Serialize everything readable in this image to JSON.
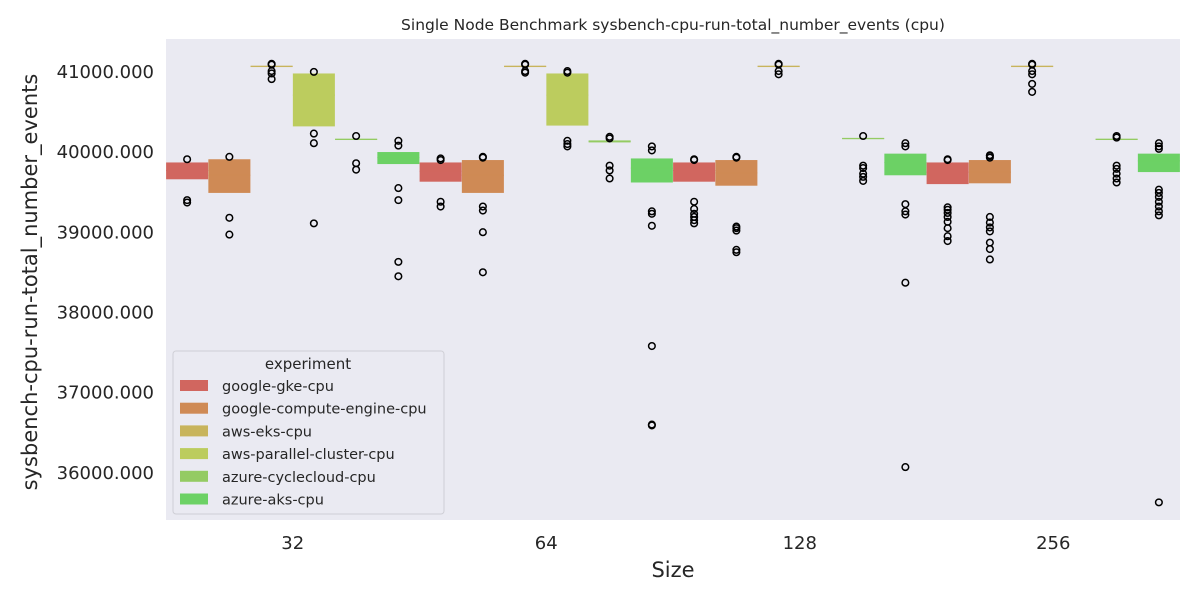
{
  "chart_data": {
    "type": "box",
    "title": "Single Node Benchmark sysbench-cpu-run-total_number_events (cpu)",
    "xlabel": "Size",
    "ylabel": "sysbench-cpu-run-total_number_events",
    "ylim": [
      35400,
      41400
    ],
    "y_ticks": [
      36000,
      37000,
      38000,
      39000,
      40000,
      41000
    ],
    "y_tick_labels": [
      "36000.000",
      "37000.000",
      "38000.000",
      "39000.000",
      "40000.000",
      "41000.000"
    ],
    "categories": [
      "32",
      "64",
      "128",
      "256"
    ],
    "grid": false,
    "legend": {
      "title": "experiment",
      "placement": "lower-left"
    },
    "series": [
      {
        "name": "google-gke-cpu",
        "color": "#d1665f",
        "boxes": [
          {
            "category": "32",
            "q1": 39650,
            "median": 39760,
            "q3": 39860,
            "outliers": [
              39390,
              39360,
              39900
            ]
          },
          {
            "category": "64",
            "q1": 39620,
            "median": 39750,
            "q3": 39860,
            "outliers": [
              39370,
              39310,
              39890,
              39910
            ]
          },
          {
            "category": "128",
            "q1": 39620,
            "median": 39760,
            "q3": 39860,
            "outliers": [
              39370,
              39280,
              39220,
              39180,
              39140,
              39100,
              39890,
              39900
            ]
          },
          {
            "category": "256",
            "q1": 39590,
            "median": 39740,
            "q3": 39860,
            "outliers": [
              39300,
              39270,
              39230,
              39180,
              39120,
              39040,
              38940,
              38880,
              39890,
              39900
            ]
          }
        ]
      },
      {
        "name": "google-compute-engine-cpu",
        "color": "#cf8a55",
        "boxes": [
          {
            "category": "32",
            "q1": 39480,
            "median": 39700,
            "q3": 39900,
            "outliers": [
              39170,
              38960,
              39930
            ]
          },
          {
            "category": "64",
            "q1": 39480,
            "median": 39700,
            "q3": 39890,
            "outliers": [
              39310,
              39260,
              38990,
              38490,
              39920,
              39930
            ]
          },
          {
            "category": "128",
            "q1": 39570,
            "median": 39730,
            "q3": 39890,
            "outliers": [
              39060,
              39040,
              39010,
              38770,
              38740,
              39920,
              39930
            ]
          },
          {
            "category": "256",
            "q1": 39600,
            "median": 39740,
            "q3": 39890,
            "outliers": [
              39180,
              39110,
              39050,
              39000,
              38860,
              38780,
              38650,
              39920,
              39940,
              39950
            ]
          }
        ]
      },
      {
        "name": "aws-eks-cpu",
        "color": "#c8b45c",
        "boxes": [
          {
            "category": "32",
            "q1": 41055,
            "median": 41060,
            "q3": 41065,
            "outliers": [
              41090,
              41080,
              41000,
              40970,
              40900
            ]
          },
          {
            "category": "64",
            "q1": 41055,
            "median": 41060,
            "q3": 41065,
            "outliers": [
              41090,
              41080,
              41000,
              40980
            ]
          },
          {
            "category": "128",
            "q1": 41055,
            "median": 41060,
            "q3": 41065,
            "outliers": [
              41090,
              41080,
              41000,
              40960
            ]
          },
          {
            "category": "256",
            "q1": 41055,
            "median": 41060,
            "q3": 41065,
            "outliers": [
              41090,
              41080,
              41000,
              40960,
              40840,
              40740
            ]
          }
        ]
      },
      {
        "name": "aws-parallel-cluster-cpu",
        "color": "#bccc5e",
        "boxes": [
          {
            "category": "32",
            "q1": 40310,
            "median": 40700,
            "q3": 40970,
            "outliers": [
              40990,
              40220,
              40100,
              39100
            ]
          },
          {
            "category": "64",
            "q1": 40320,
            "median": 40700,
            "q3": 40970,
            "outliers": [
              41000,
              40980,
              40130,
              40090,
              40060
            ]
          }
        ]
      },
      {
        "name": "azure-cyclecloud-cpu",
        "color": "#94cb63",
        "boxes": [
          {
            "category": "32",
            "q1": 40145,
            "median": 40150,
            "q3": 40155,
            "outliers": [
              40190,
              39850,
              39770
            ]
          },
          {
            "category": "64",
            "q1": 40110,
            "median": 40125,
            "q3": 40135,
            "outliers": [
              40180,
              40160,
              39820,
              39760,
              39660
            ]
          },
          {
            "category": "128",
            "q1": 40150,
            "median": 40160,
            "q3": 40165,
            "outliers": [
              40190,
              39820,
              39790,
              39720,
              39680,
              39630
            ]
          },
          {
            "category": "256",
            "q1": 40145,
            "median": 40150,
            "q3": 40155,
            "outliers": [
              40190,
              40170,
              39820,
              39780,
              39720,
              39660,
              39610
            ]
          }
        ]
      },
      {
        "name": "azure-aks-cpu",
        "color": "#6cd165",
        "boxes": [
          {
            "category": "32",
            "q1": 39840,
            "median": 39920,
            "q3": 39990,
            "outliers": [
              40130,
              40070,
              39540,
              39390,
              38620,
              38440
            ]
          },
          {
            "category": "64",
            "q1": 39610,
            "median": 39790,
            "q3": 39910,
            "outliers": [
              40060,
              40010,
              39250,
              39220,
              39070,
              37570,
              36590,
              36580
            ]
          },
          {
            "category": "128",
            "q1": 39700,
            "median": 39860,
            "q3": 39970,
            "outliers": [
              40100,
              40060,
              39340,
              39250,
              39210,
              38360,
              36060
            ]
          },
          {
            "category": "256",
            "q1": 39740,
            "median": 39880,
            "q3": 39970,
            "outliers": [
              40100,
              40060,
              40030,
              39520,
              39480,
              39430,
              39370,
              39310,
              39250,
              39200,
              35620
            ]
          }
        ]
      }
    ]
  }
}
